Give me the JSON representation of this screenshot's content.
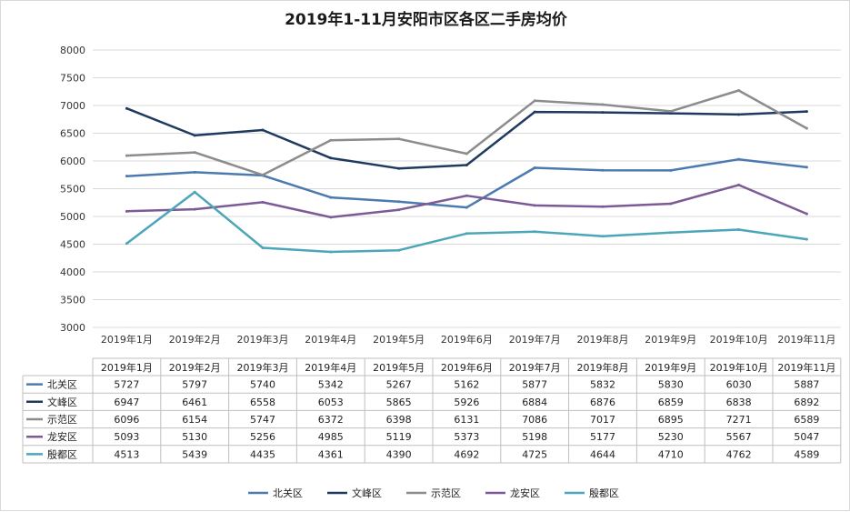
{
  "chart_data": {
    "type": "line",
    "title": "2019年1-11月安阳市区各区二手房均价",
    "categories": [
      "2019年1月",
      "2019年2月",
      "2019年3月",
      "2019年4月",
      "2019年5月",
      "2019年6月",
      "2019年7月",
      "2019年8月",
      "2019年9月",
      "2019年10月",
      "2019年11月"
    ],
    "y_ticks": [
      "8000",
      "7500",
      "7000",
      "6500",
      "6000",
      "5500",
      "5000",
      "4500",
      "4000",
      "3500",
      "3000"
    ],
    "ylim": [
      3000,
      8000
    ],
    "grid": true,
    "legend_position": "bottom",
    "series": [
      {
        "name": "北关区",
        "color": "#4a7ab0",
        "values": [
          5727,
          5797,
          5740,
          5342,
          5267,
          5162,
          5877,
          5832,
          5830,
          6030,
          5887
        ]
      },
      {
        "name": "文峰区",
        "color": "#1f3a5f",
        "values": [
          6947,
          6461,
          6558,
          6053,
          5865,
          5926,
          6884,
          6876,
          6859,
          6838,
          6892
        ]
      },
      {
        "name": "示范区",
        "color": "#8c8c8c",
        "values": [
          6096,
          6154,
          5747,
          6372,
          6398,
          6131,
          7086,
          7017,
          6895,
          7271,
          6589
        ]
      },
      {
        "name": "龙安区",
        "color": "#7c5a96",
        "values": [
          5093,
          5130,
          5256,
          4985,
          5119,
          5373,
          5198,
          5177,
          5230,
          5567,
          5047
        ]
      },
      {
        "name": "殷都区",
        "color": "#4aa6b8",
        "values": [
          4513,
          5439,
          4435,
          4361,
          4390,
          4692,
          4725,
          4644,
          4710,
          4762,
          4589
        ]
      }
    ]
  }
}
